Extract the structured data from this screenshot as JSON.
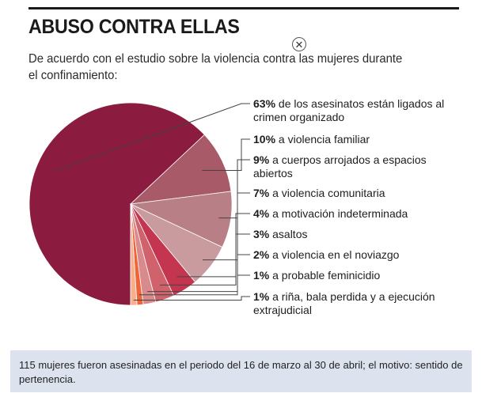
{
  "title": "ABUSO CONTRA ELLAS",
  "subtitle": "De acuerdo con el estudio sobre la violencia contra las mujeres durante el confinamiento:",
  "close_icon": "close-icon",
  "caption": "115 mujeres fueron asesinadas en el periodo del 16 de marzo al 30 de abril; el motivo: sentido de pertenencia.",
  "chart_data": {
    "type": "pie",
    "title": "ABUSO CONTRA ELLAS",
    "unit": "%",
    "slices": [
      {
        "value": 63,
        "pct": "63%",
        "lines": [
          "de los asesinatos están ligados al",
          "crimen organizado"
        ],
        "color": "#8b1b3f"
      },
      {
        "value": 10,
        "pct": "10%",
        "lines": [
          "a violencia familiar"
        ],
        "color": "#a85a68"
      },
      {
        "value": 9,
        "pct": "9%",
        "lines": [
          "a cuerpos arrojados a espacios",
          "abiertos"
        ],
        "color": "#b87f86"
      },
      {
        "value": 7,
        "pct": "7%",
        "lines": [
          "a violencia comunitaria"
        ],
        "color": "#c99b9f"
      },
      {
        "value": 4,
        "pct": "4%",
        "lines": [
          "a motivación indeterminada"
        ],
        "color": "#c4364f"
      },
      {
        "value": 3,
        "pct": "3%",
        "lines": [
          "asaltos"
        ],
        "color": "#d0626c"
      },
      {
        "value": 2,
        "pct": "2%",
        "lines": [
          "a violencia en el noviazgo"
        ],
        "color": "#d98a8c"
      },
      {
        "value": 1,
        "pct": "1%",
        "lines": [
          "a probable feminicidio"
        ],
        "color": "#f0643a"
      },
      {
        "value": 1,
        "pct": "1%",
        "lines": [
          "a riña, bala perdida y a ejecución",
          "extrajudicial"
        ],
        "color": "#f7b08c"
      }
    ]
  }
}
